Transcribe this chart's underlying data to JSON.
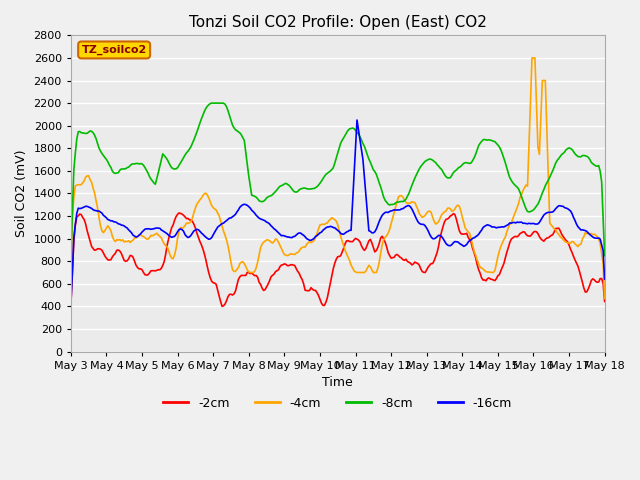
{
  "title": "Tonzi Soil CO2 Profile: Open (East) CO2",
  "xlabel": "Time",
  "ylabel": "Soil CO2 (mV)",
  "ylim": [
    0,
    2800
  ],
  "yticks": [
    0,
    200,
    400,
    600,
    800,
    1000,
    1200,
    1400,
    1600,
    1800,
    2000,
    2200,
    2400,
    2600,
    2800
  ],
  "legend_label": "TZ_soilco2",
  "legend_bg": "#FFD700",
  "legend_border": "#CC6600",
  "series_labels": [
    "-2cm",
    "-4cm",
    "-8cm",
    "-16cm"
  ],
  "series_colors": [
    "#FF0000",
    "#FFA500",
    "#00BB00",
    "#0000FF"
  ],
  "line_width": 1.2,
  "background_color": "#EBEBEB",
  "grid_color": "#FFFFFF",
  "xtick_labels": [
    "May 3",
    "May 4",
    "May 5",
    "May 6",
    "May 7",
    "May 8",
    "May 9",
    "May 10",
    "May 11",
    "May 12",
    "May 13",
    "May 14",
    "May 15",
    "May 16",
    "May 17",
    "May 18"
  ],
  "num_points": 361,
  "days": 15
}
